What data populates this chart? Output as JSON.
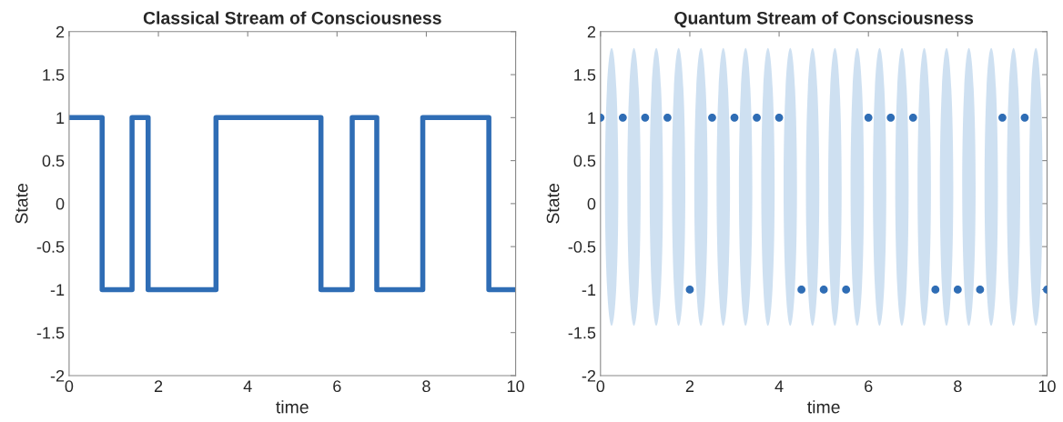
{
  "chart_data": [
    {
      "type": "step",
      "title": "Classical Stream of Consciousness",
      "xlabel": "time",
      "ylabel": "State",
      "series": [
        {
          "color": "#2f6db5",
          "x": [
            0,
            0.74,
            1.41,
            1.77,
            3.29,
            5.64,
            6.34,
            6.89,
            7.92,
            9.4,
            10
          ],
          "values": [
            1,
            -1,
            1,
            -1,
            1,
            -1,
            1,
            -1,
            1,
            -1,
            -1
          ]
        }
      ],
      "xlim": [
        0,
        10
      ],
      "xticks": [
        0,
        2,
        4,
        6,
        8,
        10
      ],
      "ylim": [
        -2,
        2
      ],
      "yticks": [
        -2,
        -1.5,
        -1,
        -0.5,
        0,
        0.5,
        1,
        1.5,
        2
      ],
      "grid": false
    },
    {
      "type": "scatter",
      "title": "Quantum Stream of Consciousness",
      "xlabel": "time",
      "ylabel": "State",
      "marker": "circle",
      "series": [
        {
          "color": "#2f6db5",
          "x": [
            0,
            0.5,
            1,
            1.5,
            2,
            2.5,
            3,
            3.5,
            4,
            4.5,
            5,
            5.5,
            6,
            6.5,
            7,
            7.5,
            8,
            8.5,
            9,
            9.5,
            10
          ],
          "values": [
            1,
            1,
            1,
            1,
            -1,
            1,
            1,
            1,
            1,
            -1,
            -1,
            -1,
            1,
            1,
            1,
            -1,
            -1,
            -1,
            1,
            1,
            -1
          ]
        }
      ],
      "xlim": [
        0,
        10
      ],
      "xticks": [
        0,
        2,
        4,
        6,
        8,
        10
      ],
      "ylim": [
        -2,
        2
      ],
      "yticks": [
        -2,
        -1.5,
        -1,
        -0.5,
        0,
        0.5,
        1,
        1.5,
        2
      ],
      "grid": false
    }
  ]
}
